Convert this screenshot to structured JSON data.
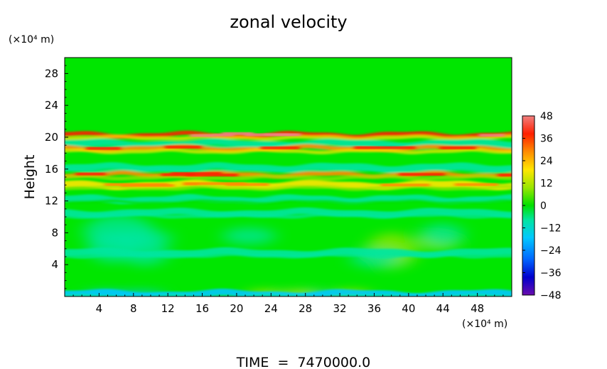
{
  "chart_data": {
    "type": "heatmap",
    "title": "zonal velocity",
    "ylabel": "Height",
    "y_unit": "(×10⁴ m)",
    "x_unit": "(×10⁴ m)",
    "footer": "TIME  =  7470000.0",
    "xlim": [
      0,
      52
    ],
    "ylim": [
      0,
      30
    ],
    "x_ticks": [
      "4",
      "8",
      "12",
      "16",
      "20",
      "24",
      "28",
      "32",
      "36",
      "40",
      "44",
      "48"
    ],
    "x_tick_values": [
      4,
      8,
      12,
      16,
      20,
      24,
      28,
      32,
      36,
      40,
      44,
      48
    ],
    "y_ticks": [
      "4",
      "8",
      "12",
      "16",
      "20",
      "24",
      "28"
    ],
    "y_tick_values": [
      4,
      8,
      12,
      16,
      20,
      24,
      28
    ],
    "colorbar": {
      "labels": [
        "48",
        "36",
        "24",
        "12",
        "0",
        "−12",
        "−24",
        "−36",
        "−48"
      ],
      "values": [
        48,
        36,
        24,
        12,
        0,
        -12,
        -24,
        -36,
        -48
      ],
      "range": [
        -48,
        48
      ],
      "colormap": [
        "#6a0dad",
        "#0000cd",
        "#0066ff",
        "#00c8ff",
        "#00e5a0",
        "#00e000",
        "#9ae600",
        "#ffe600",
        "#ff8c00",
        "#ff2000",
        "#f08080"
      ]
    },
    "features": [
      {
        "y": 20.3,
        "value": 40,
        "desc": "thin strong jet"
      },
      {
        "y": 19.2,
        "value": -14,
        "desc": "cyan band"
      },
      {
        "y": 18.6,
        "value": 30,
        "desc": "jet core"
      },
      {
        "y": 16.2,
        "value": -10,
        "desc": "cyan band"
      },
      {
        "y": 15.3,
        "value": 28,
        "desc": "jet"
      },
      {
        "y": 14.0,
        "value": 18,
        "desc": "jet"
      },
      {
        "y": 12.2,
        "value": -8,
        "desc": "cyan band"
      },
      {
        "y": 10.5,
        "value": -10,
        "desc": "cyan band"
      },
      {
        "y": 5.5,
        "value": -10,
        "desc": "lower variability"
      },
      {
        "y": 0.3,
        "value": -16,
        "desc": "surface"
      }
    ]
  }
}
